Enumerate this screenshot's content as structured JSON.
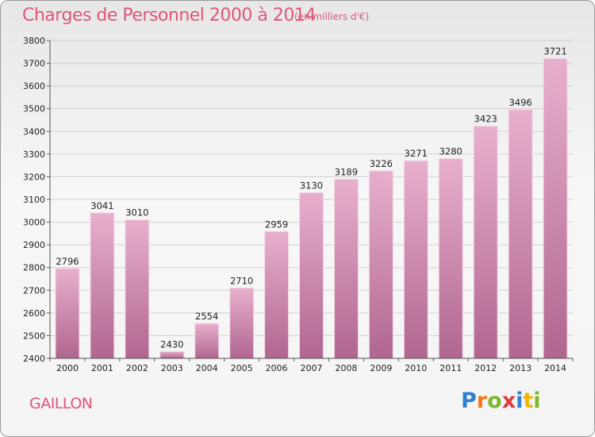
{
  "header": {
    "title": "Charges de Personnel 2000 à 2014",
    "subtitle": "(en milliers d'€)"
  },
  "footer": {
    "city": "GAILLON",
    "logo": "Proxiti",
    "logo_letters": [
      {
        "ch": "P",
        "color": "#2f7fd0"
      },
      {
        "ch": "r",
        "color": "#f07a1a"
      },
      {
        "ch": "o",
        "color": "#7ab82a"
      },
      {
        "ch": "x",
        "color": "#e03c3c"
      },
      {
        "ch": "i",
        "color": "#2f7fd0"
      },
      {
        "ch": "t",
        "color": "#f0b400"
      },
      {
        "ch": "i",
        "color": "#7ab82a"
      }
    ]
  },
  "colors": {
    "bar_top": "#e8b0cd",
    "bar_bottom": "#b0668f",
    "grid": "#cfcfcf",
    "axis": "#555555",
    "title": "#e0557a"
  },
  "chart_data": {
    "type": "bar",
    "categories": [
      "2000",
      "2001",
      "2002",
      "2003",
      "2004",
      "2005",
      "2006",
      "2007",
      "2008",
      "2009",
      "2010",
      "2011",
      "2012",
      "2013",
      "2014"
    ],
    "values": [
      2796,
      3041,
      3010,
      2430,
      2554,
      2710,
      2959,
      3130,
      3189,
      3226,
      3271,
      3280,
      3423,
      3496,
      3721
    ],
    "title": "Charges de Personnel 2000 à 2014",
    "subtitle": "(en milliers d'€)",
    "ylim": [
      2400,
      3800
    ],
    "yticks": [
      2400,
      2500,
      2600,
      2700,
      2800,
      2900,
      3000,
      3100,
      3200,
      3300,
      3400,
      3500,
      3600,
      3700,
      3800
    ],
    "grid": true
  }
}
